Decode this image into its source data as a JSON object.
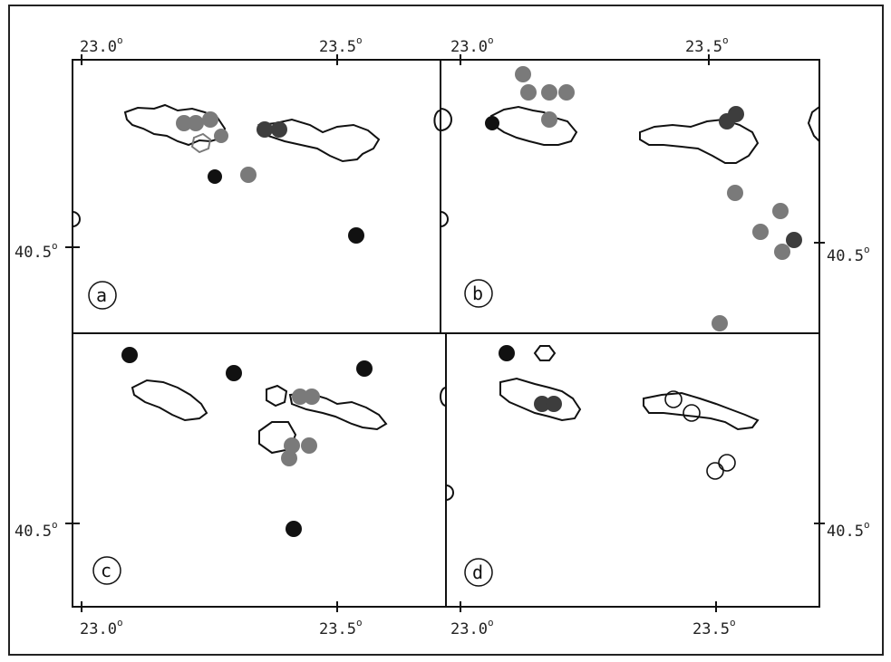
{
  "axis_labels": {
    "lon_23_0": "23.0",
    "lon_23_5": "23.5",
    "lat_40_5": "40.5",
    "degree": "o"
  },
  "panels": {
    "a": {
      "letter": "a"
    },
    "b": {
      "letter": "b"
    },
    "c": {
      "letter": "c"
    },
    "d": {
      "letter": "d"
    }
  },
  "colors": {
    "black": "#111111",
    "dark_gray": "#3d3d3d",
    "gray": "#7a7a7a",
    "outline": "#111111"
  }
}
